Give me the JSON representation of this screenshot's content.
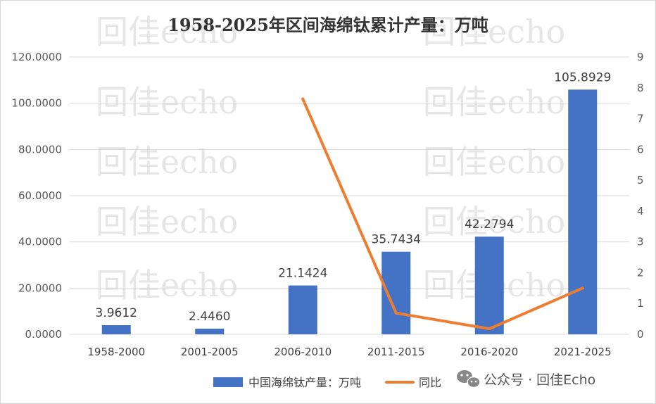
{
  "chart_data": {
    "type": "bar",
    "title": "1958-2025年区间海绵钛累计产量：万吨",
    "categories": [
      "1958-2000",
      "2001-2005",
      "2006-2010",
      "2011-2015",
      "2016-2020",
      "2021-2025"
    ],
    "series": [
      {
        "name": "中国海绵钛产量：万吨",
        "type": "bar",
        "axis": "left",
        "color": "#4472C4",
        "values": [
          3.9612,
          2.446,
          21.1424,
          35.7434,
          42.2794,
          105.8929
        ],
        "labels": [
          "3.9612",
          "2.4460",
          "21.1424",
          "35.7434",
          "42.2794",
          "105.8929"
        ]
      },
      {
        "name": "同比",
        "type": "line",
        "axis": "right",
        "color": "#ED7D31",
        "values": [
          null,
          null,
          7.64,
          0.69,
          0.18,
          1.5
        ]
      }
    ],
    "left_axis": {
      "ylim": [
        0,
        120
      ],
      "ticks": [
        "0.0000",
        "20.0000",
        "40.0000",
        "60.0000",
        "80.0000",
        "100.0000",
        "120.0000"
      ]
    },
    "right_axis": {
      "ylim": [
        0,
        9
      ],
      "ticks": [
        "0",
        "1",
        "2",
        "3",
        "4",
        "5",
        "6",
        "7",
        "8",
        "9"
      ]
    },
    "grid": true,
    "legend_position": "bottom"
  },
  "watermark": {
    "text": "回佳echo",
    "brand": "公众号 · 回佳Echo",
    "brand_icon": "wechat-icon"
  }
}
